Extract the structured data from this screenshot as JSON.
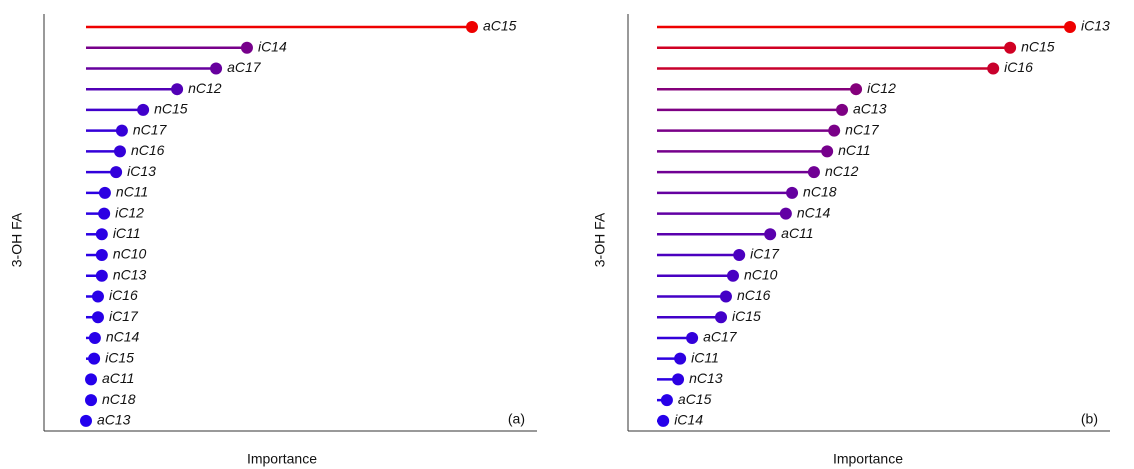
{
  "chart_data": [
    {
      "type": "lollipop",
      "ylabel": "3-OH FA",
      "xlabel": "Importance",
      "panel_label": "(a)",
      "categories": [
        "aC15",
        "iC14",
        "aC17",
        "nC12",
        "nC15",
        "nC17",
        "nC16",
        "iC13",
        "nC11",
        "iC12",
        "iC11",
        "nC10",
        "nC13",
        "iC16",
        "iC17",
        "nC14",
        "iC15",
        "aC11",
        "nC18",
        "aC13"
      ],
      "values": [
        100,
        41.7,
        33.7,
        23.6,
        14.8,
        9.3,
        8.8,
        7.8,
        4.9,
        4.7,
        4.1,
        4.1,
        4.1,
        3.1,
        3.1,
        2.3,
        2.1,
        1.3,
        1.3,
        0
      ],
      "xlim": [
        0,
        100
      ],
      "color_scale": [
        "#2200ee",
        "#ee0000"
      ]
    },
    {
      "type": "lollipop",
      "ylabel": "3-OH FA",
      "xlabel": "Importance",
      "panel_label": "(b)",
      "categories": [
        "iC13",
        "nC15",
        "iC16",
        "iC12",
        "aC13",
        "nC17",
        "nC11",
        "nC12",
        "nC18",
        "nC14",
        "aC11",
        "iC17",
        "nC10",
        "nC16",
        "iC15",
        "aC17",
        "iC11",
        "nC13",
        "aC15",
        "iC14"
      ],
      "values": [
        100,
        85.5,
        81.4,
        48.2,
        44.8,
        42.9,
        41.2,
        38.0,
        32.7,
        31.2,
        27.4,
        19.9,
        18.4,
        16.7,
        15.5,
        8.5,
        5.6,
        5.1,
        2.4,
        1.5
      ],
      "xlim": [
        0,
        100
      ],
      "color_scale": [
        "#2200ee",
        "#ee0000"
      ]
    }
  ]
}
